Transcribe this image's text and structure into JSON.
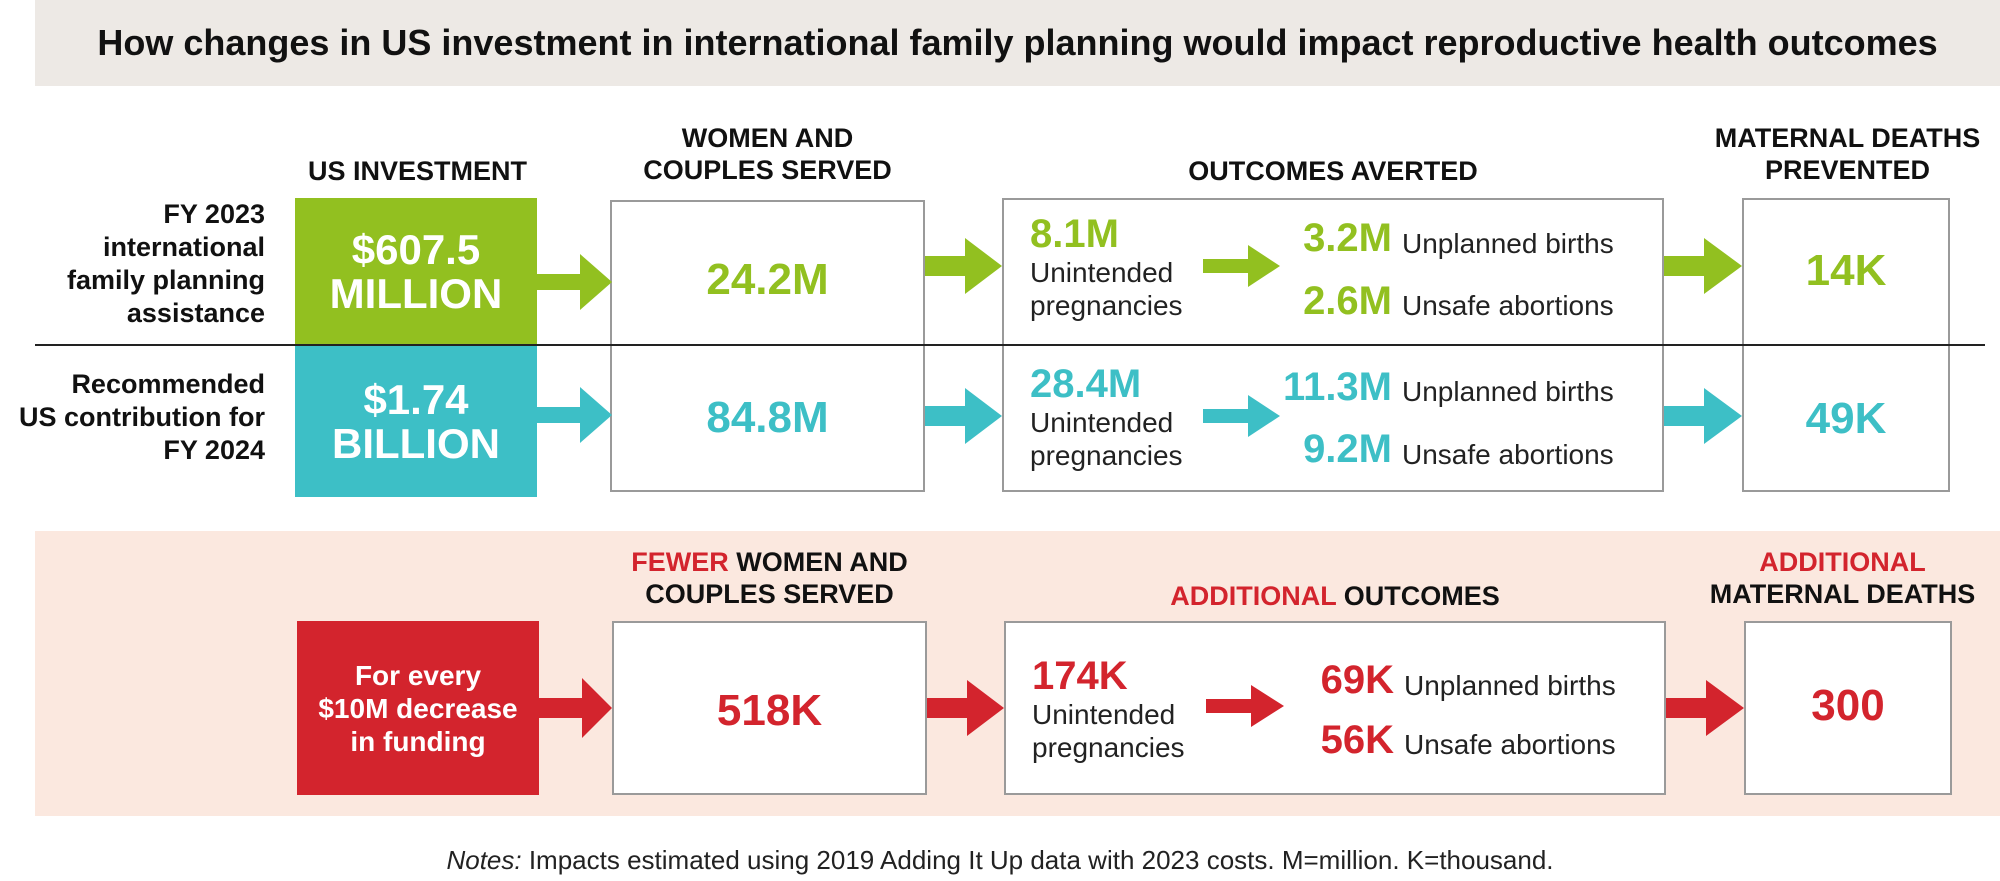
{
  "title": "How changes in US investment in international family planning would impact reproductive health outcomes",
  "colors": {
    "green": "#92c020",
    "teal": "#3dbfc6",
    "red": "#d3242d"
  },
  "headers": {
    "investment": "US INVESTMENT",
    "served_1": "WOMEN AND",
    "served_2": "COUPLES SERVED",
    "outcomes": "OUTCOMES AVERTED",
    "deaths_1": "MATERNAL DEATHS",
    "deaths_2": "PREVENTED"
  },
  "rows": [
    {
      "label_lines": [
        "FY 2023",
        "international",
        "family planning",
        "assistance"
      ],
      "investment_lines": [
        "$607.5",
        "MILLION"
      ],
      "served": "24.2M",
      "pregnancies": "8.1M",
      "pregnancies_label_1": "Unintended",
      "pregnancies_label_2": "pregnancies",
      "births": "3.2M",
      "births_label": "Unplanned births",
      "abortions": "2.6M",
      "abortions_label": "Unsafe abortions",
      "deaths": "14K"
    },
    {
      "label_lines": [
        "Recommended",
        "US contribution for",
        "FY 2024"
      ],
      "investment_lines": [
        "$1.74",
        "BILLION"
      ],
      "served": "84.8M",
      "pregnancies": "28.4M",
      "pregnancies_label_1": "Unintended",
      "pregnancies_label_2": "pregnancies",
      "births": "11.3M",
      "births_label": "Unplanned births",
      "abortions": "9.2M",
      "abortions_label": "Unsafe abortions",
      "deaths": "49K"
    }
  ],
  "decrease": {
    "served_head_red": "FEWER",
    "served_head_rest": " WOMEN AND",
    "served_head_2": "COUPLES SERVED",
    "outcomes_head_red": "ADDITIONAL",
    "outcomes_head_rest": " OUTCOMES",
    "deaths_head_1": "ADDITIONAL",
    "deaths_head_2": "MATERNAL DEATHS",
    "box_lines": [
      "For every",
      "$10M decrease",
      "in funding"
    ],
    "served": "518K",
    "pregnancies": "174K",
    "pregnancies_label_1": "Unintended",
    "pregnancies_label_2": "pregnancies",
    "births": "69K",
    "births_label": "Unplanned births",
    "abortions": "56K",
    "abortions_label": "Unsafe abortions",
    "deaths": "300"
  },
  "notes": {
    "label": "Notes:",
    "text": " Impacts estimated using 2019 Adding It Up data with 2023 costs. M=million. K=thousand."
  }
}
